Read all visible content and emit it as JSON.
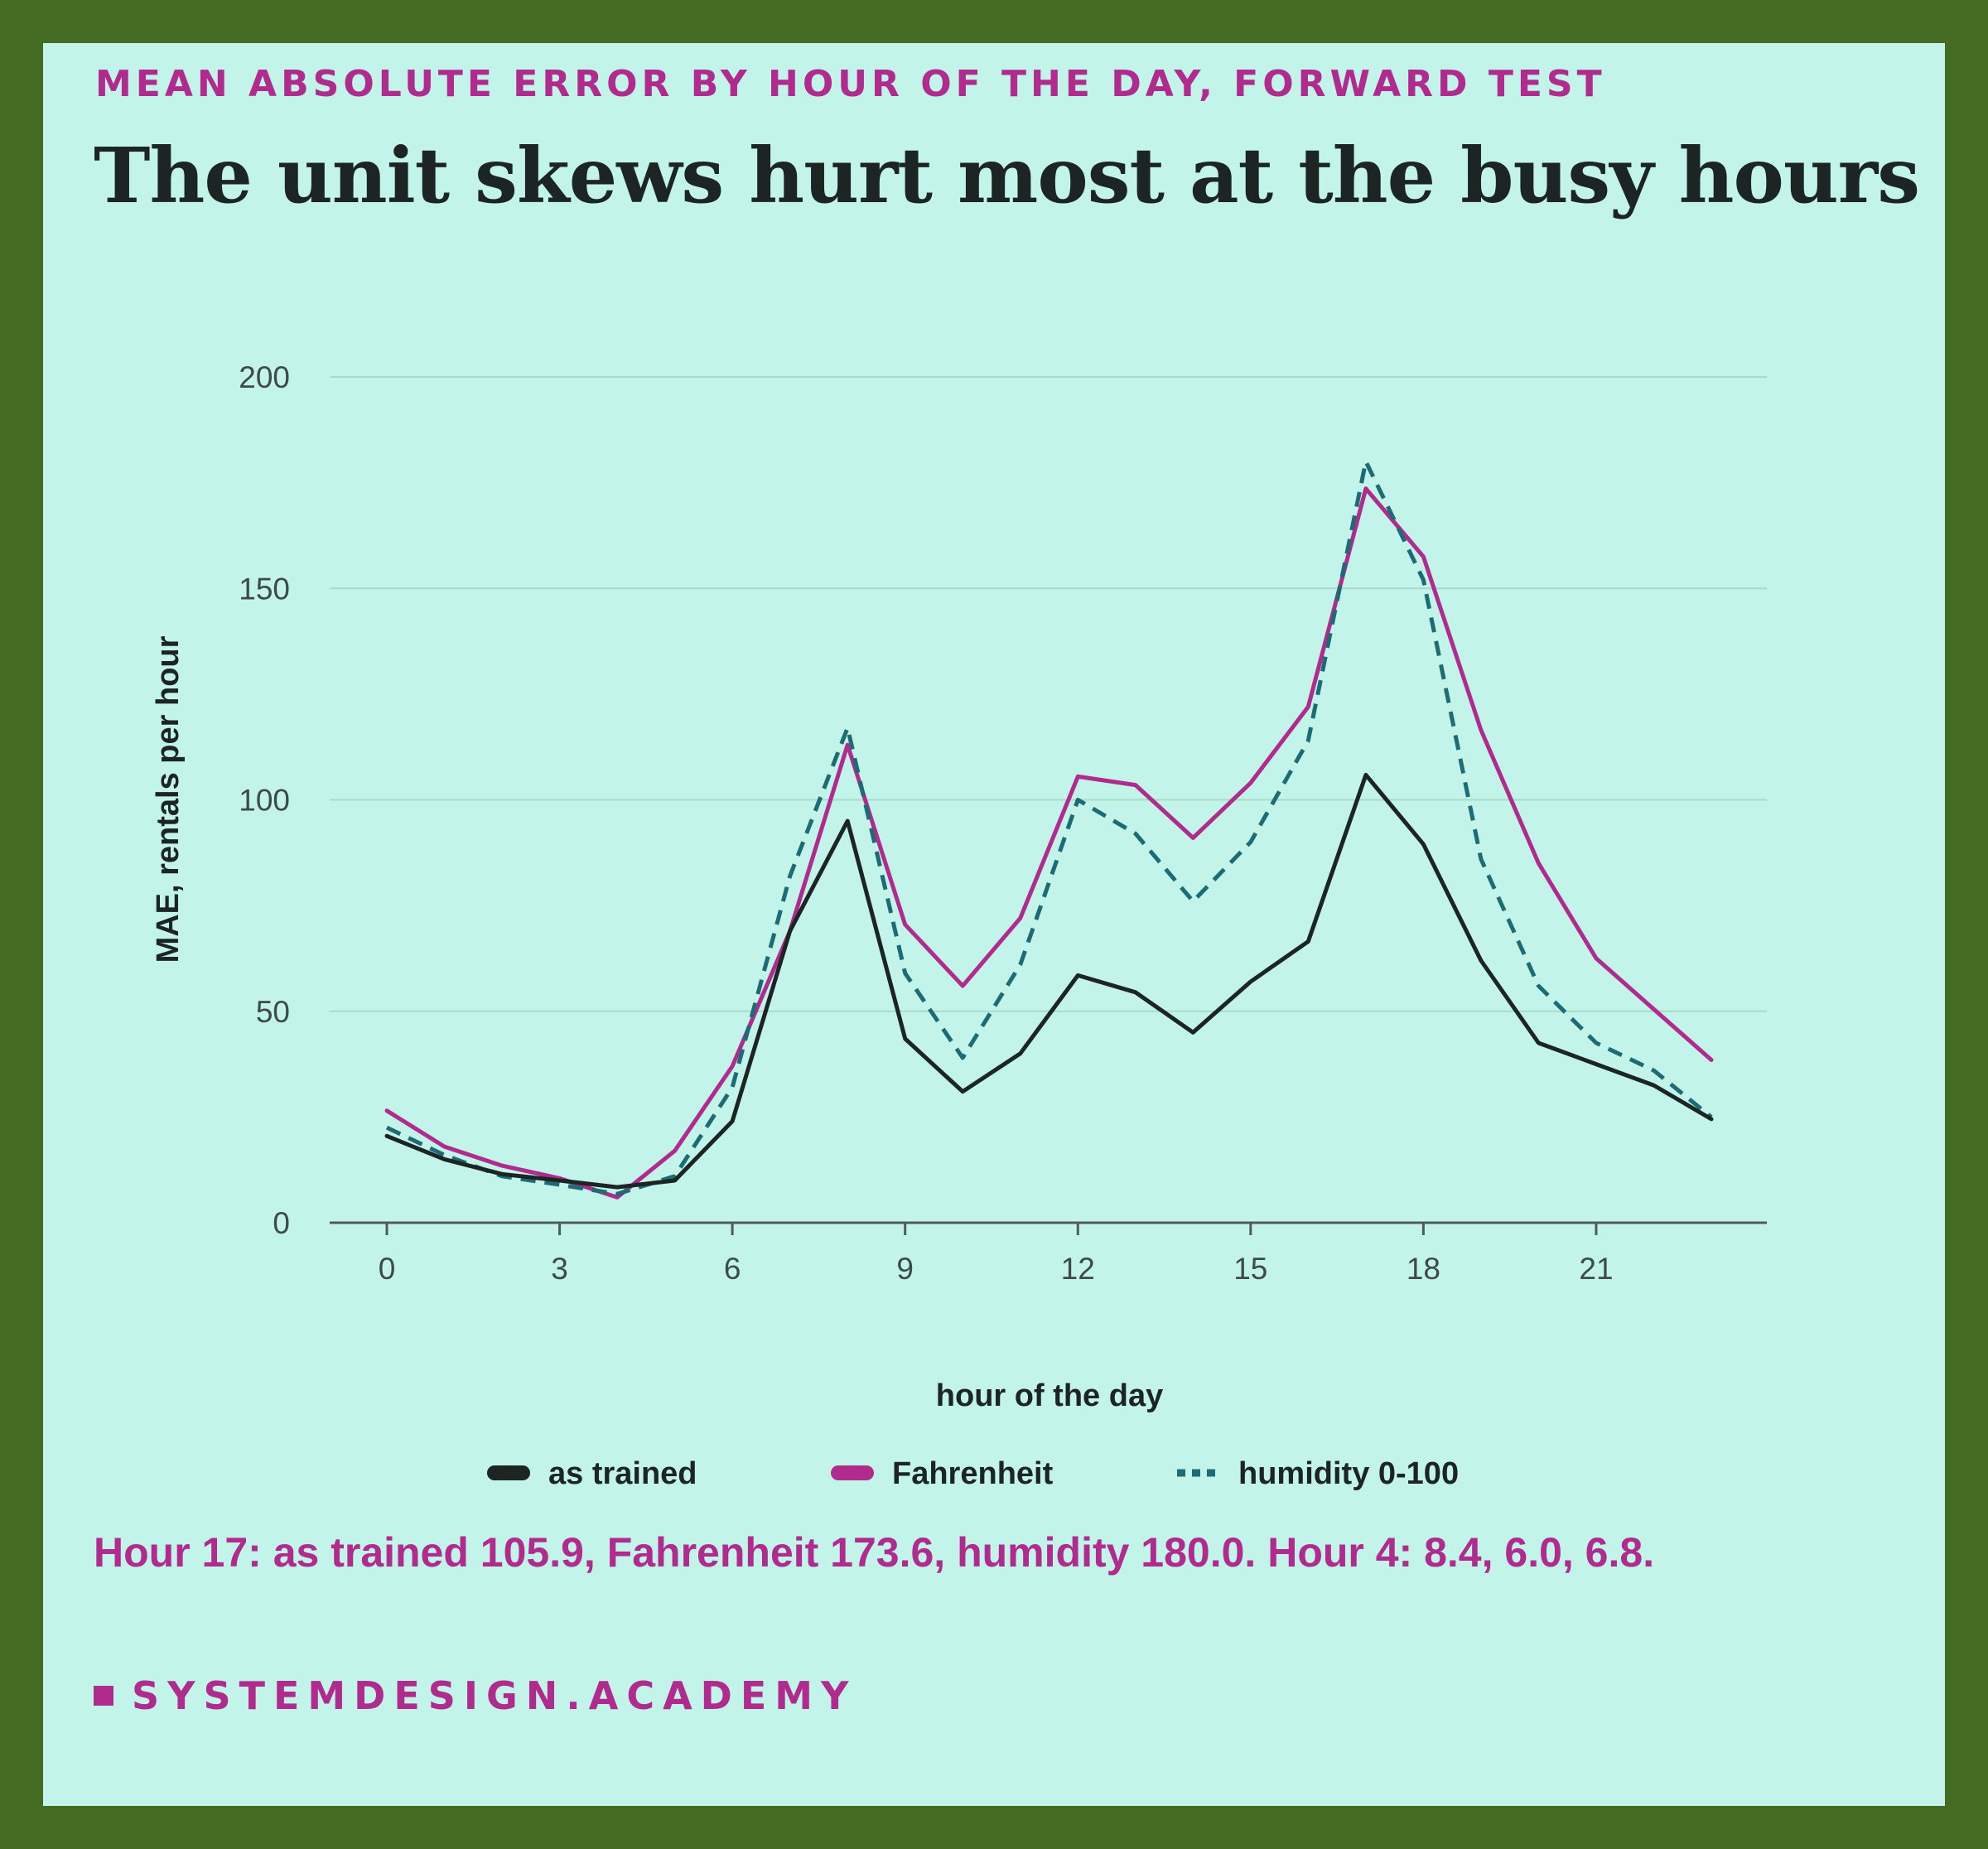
{
  "kicker": "MEAN ABSOLUTE ERROR BY HOUR OF THE DAY, FORWARD TEST",
  "headline": "The unit skews hurt most at the busy hours",
  "note": "Hour 17: as trained 105.9, Fahrenheit 173.6, humidity 180.0. Hour 4: 8.4, 6.0, 6.8.",
  "brand": "SYSTEMDESIGN.ACADEMY",
  "colors": {
    "background_frame": "#436b22",
    "card": "#c3f4ea",
    "accent": "#b12a8e",
    "ink": "#1c2523",
    "as_trained": "#1c2523",
    "fahrenheit": "#b12a8e",
    "humidity": "#1d6b74",
    "grid": "#a6dcc8"
  },
  "chart_data": {
    "type": "line",
    "title": "The unit skews hurt most at the busy hours",
    "xlabel": "hour of the day",
    "ylabel": "MAE, rentals per hour",
    "xlim": [
      0,
      23
    ],
    "ylim": [
      0,
      200
    ],
    "xticks": [
      0,
      3,
      6,
      9,
      12,
      15,
      18,
      21
    ],
    "yticks": [
      0,
      50,
      100,
      150,
      200
    ],
    "grid": "horizontal",
    "legend_position": "bottom",
    "x": [
      0,
      1,
      2,
      3,
      4,
      5,
      6,
      7,
      8,
      9,
      10,
      11,
      12,
      13,
      14,
      15,
      16,
      17,
      18,
      19,
      20,
      21,
      22,
      23
    ],
    "series": [
      {
        "name": "as trained",
        "style": "solid",
        "values": [
          20.5,
          15,
          11.5,
          10,
          8.4,
          10,
          24,
          69,
          95,
          43.5,
          31,
          40,
          58.5,
          54.5,
          45,
          57,
          66.5,
          105.9,
          89.5,
          62,
          42.5,
          37.5,
          32.5,
          24.5
        ]
      },
      {
        "name": "Fahrenheit",
        "style": "solid",
        "values": [
          26.5,
          18,
          13.5,
          10.5,
          6.0,
          17,
          37,
          69,
          113,
          70.5,
          56,
          72,
          105.5,
          103.5,
          91,
          104,
          122,
          173.6,
          157.5,
          116.5,
          85,
          62.5,
          50.5,
          38.5
        ]
      },
      {
        "name": "humidity 0-100",
        "style": "dashed",
        "values": [
          22.5,
          16,
          11,
          9,
          6.8,
          11,
          32,
          82,
          117,
          59,
          39,
          61,
          100,
          92,
          76,
          90,
          114,
          180.0,
          152,
          86,
          56,
          42.5,
          36,
          25
        ]
      }
    ]
  }
}
